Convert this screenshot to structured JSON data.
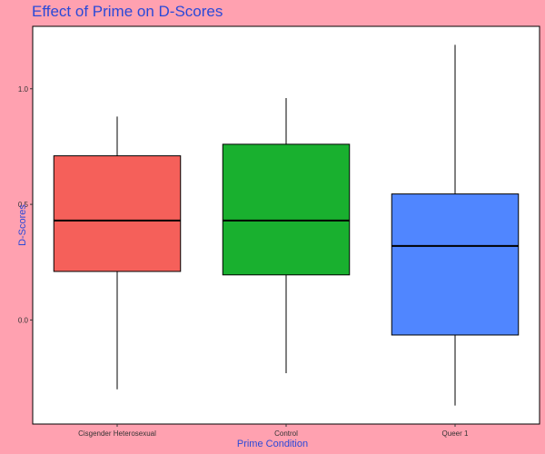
{
  "chart_data": {
    "type": "boxplot",
    "title": "Effect of Prime on D-Scores",
    "xlabel": "Prime Condition",
    "ylabel": "D-Scores",
    "ylim": [
      -0.45,
      1.27
    ],
    "yticks": [
      0.0,
      0.5,
      1.0
    ],
    "ytick_labels": [
      "0.0",
      "0.5",
      "1.0"
    ],
    "categories": [
      "Cisgender Heterosexual",
      "Control",
      "Queer 1"
    ],
    "boxes": [
      {
        "category": "Cisgender Heterosexual",
        "whisker_low": -0.3,
        "q1": 0.21,
        "median": 0.43,
        "q3": 0.71,
        "whisker_high": 0.88,
        "color": "#f5605a"
      },
      {
        "category": "Control",
        "whisker_low": -0.23,
        "q1": 0.195,
        "median": 0.43,
        "q3": 0.76,
        "whisker_high": 0.96,
        "color": "#19b02f"
      },
      {
        "category": "Queer 1",
        "whisker_low": -0.37,
        "q1": -0.065,
        "median": 0.32,
        "q3": 0.545,
        "whisker_high": 1.19,
        "color": "#5086ff"
      }
    ],
    "grid": false,
    "background": "#ffffff",
    "outer_background": "#ffa1b0",
    "text_color": "#2a49d8"
  }
}
